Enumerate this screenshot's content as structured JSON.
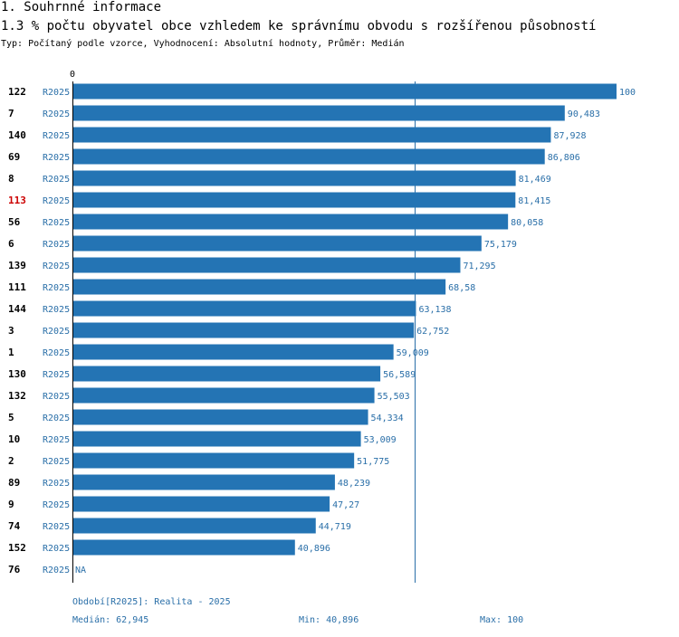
{
  "header": {
    "section_title": "1. Souhrnné informace",
    "chart_title": "1.3 % počtu obyvatel obce vzhledem ke správnímu obvodu s rozšířenou působností",
    "subtitle": "Typ: Počítaný podle vzorce, Vyhodnocení: Absolutní hodnoty, Průměr: Medián"
  },
  "colors": {
    "bar": "#2474b4",
    "value_label": "#2a6fa8",
    "highlight": "#cc0000",
    "axis": "#000000",
    "median_line": "#2a6fa8"
  },
  "chart_data": {
    "type": "bar",
    "orientation": "horizontal",
    "axis_zero_label": "0",
    "xlim": [
      0,
      100
    ],
    "median": 62.945,
    "highlight_category": "113",
    "series_label": "R2025",
    "categories": [
      "122",
      "7",
      "140",
      "69",
      "8",
      "113",
      "56",
      "6",
      "139",
      "111",
      "144",
      "3",
      "1",
      "130",
      "132",
      "5",
      "10",
      "2",
      "89",
      "9",
      "74",
      "152",
      "76"
    ],
    "values": [
      100,
      90.483,
      87.928,
      86.806,
      81.469,
      81.415,
      80.058,
      75.179,
      71.295,
      68.58,
      63.138,
      62.752,
      59.009,
      56.589,
      55.503,
      54.334,
      53.009,
      51.775,
      48.239,
      47.27,
      44.719,
      40.896,
      null
    ],
    "value_labels": [
      "100",
      "90,483",
      "87,928",
      "86,806",
      "81,469",
      "81,415",
      "80,058",
      "75,179",
      "71,295",
      "68,58",
      "63,138",
      "62,752",
      "59,009",
      "56,589",
      "55,503",
      "54,334",
      "53,009",
      "51,775",
      "48,239",
      "47,27",
      "44,719",
      "40,896",
      "NA"
    ]
  },
  "footer": {
    "period": "Období[R2025]: Realita - 2025",
    "median": "Medián: 62,945",
    "min": "Min: 40,896",
    "max": "Max: 100"
  }
}
